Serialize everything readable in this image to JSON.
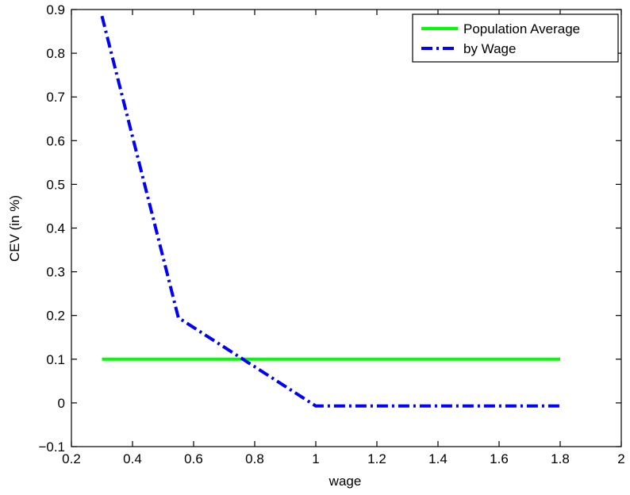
{
  "chart_data": {
    "type": "line",
    "xlabel": "wage",
    "ylabel": "CEV (in %)",
    "xlim": [
      0.2,
      2
    ],
    "ylim": [
      -0.1,
      0.9
    ],
    "x_ticks": [
      0.2,
      0.4,
      0.6,
      0.8,
      1,
      1.2,
      1.4,
      1.6,
      1.8,
      2
    ],
    "y_ticks": [
      -0.1,
      0,
      0.1,
      0.2,
      0.3,
      0.4,
      0.5,
      0.6,
      0.7,
      0.8,
      0.9
    ],
    "x_tick_labels": [
      "0.2",
      "0.4",
      "0.6",
      "0.8",
      "1",
      "1.2",
      "1.4",
      "1.6",
      "1.8",
      "2"
    ],
    "y_tick_labels": [
      "−0.1",
      "0",
      "0.1",
      "0.2",
      "0.3",
      "0.4",
      "0.5",
      "0.6",
      "0.7",
      "0.8",
      "0.9"
    ],
    "grid": false,
    "legend_position": "top-right",
    "series": [
      {
        "name": "Population Average",
        "color": "#00ff00",
        "line_style": "solid",
        "x": [
          0.3,
          1.8
        ],
        "y": [
          0.1,
          0.1
        ]
      },
      {
        "name": "by Wage",
        "color": "#0000ff",
        "line_style": "dash-dot",
        "x": [
          0.3,
          0.55,
          1.0,
          1.8
        ],
        "y": [
          0.885,
          0.195,
          -0.007,
          -0.007
        ]
      }
    ]
  }
}
